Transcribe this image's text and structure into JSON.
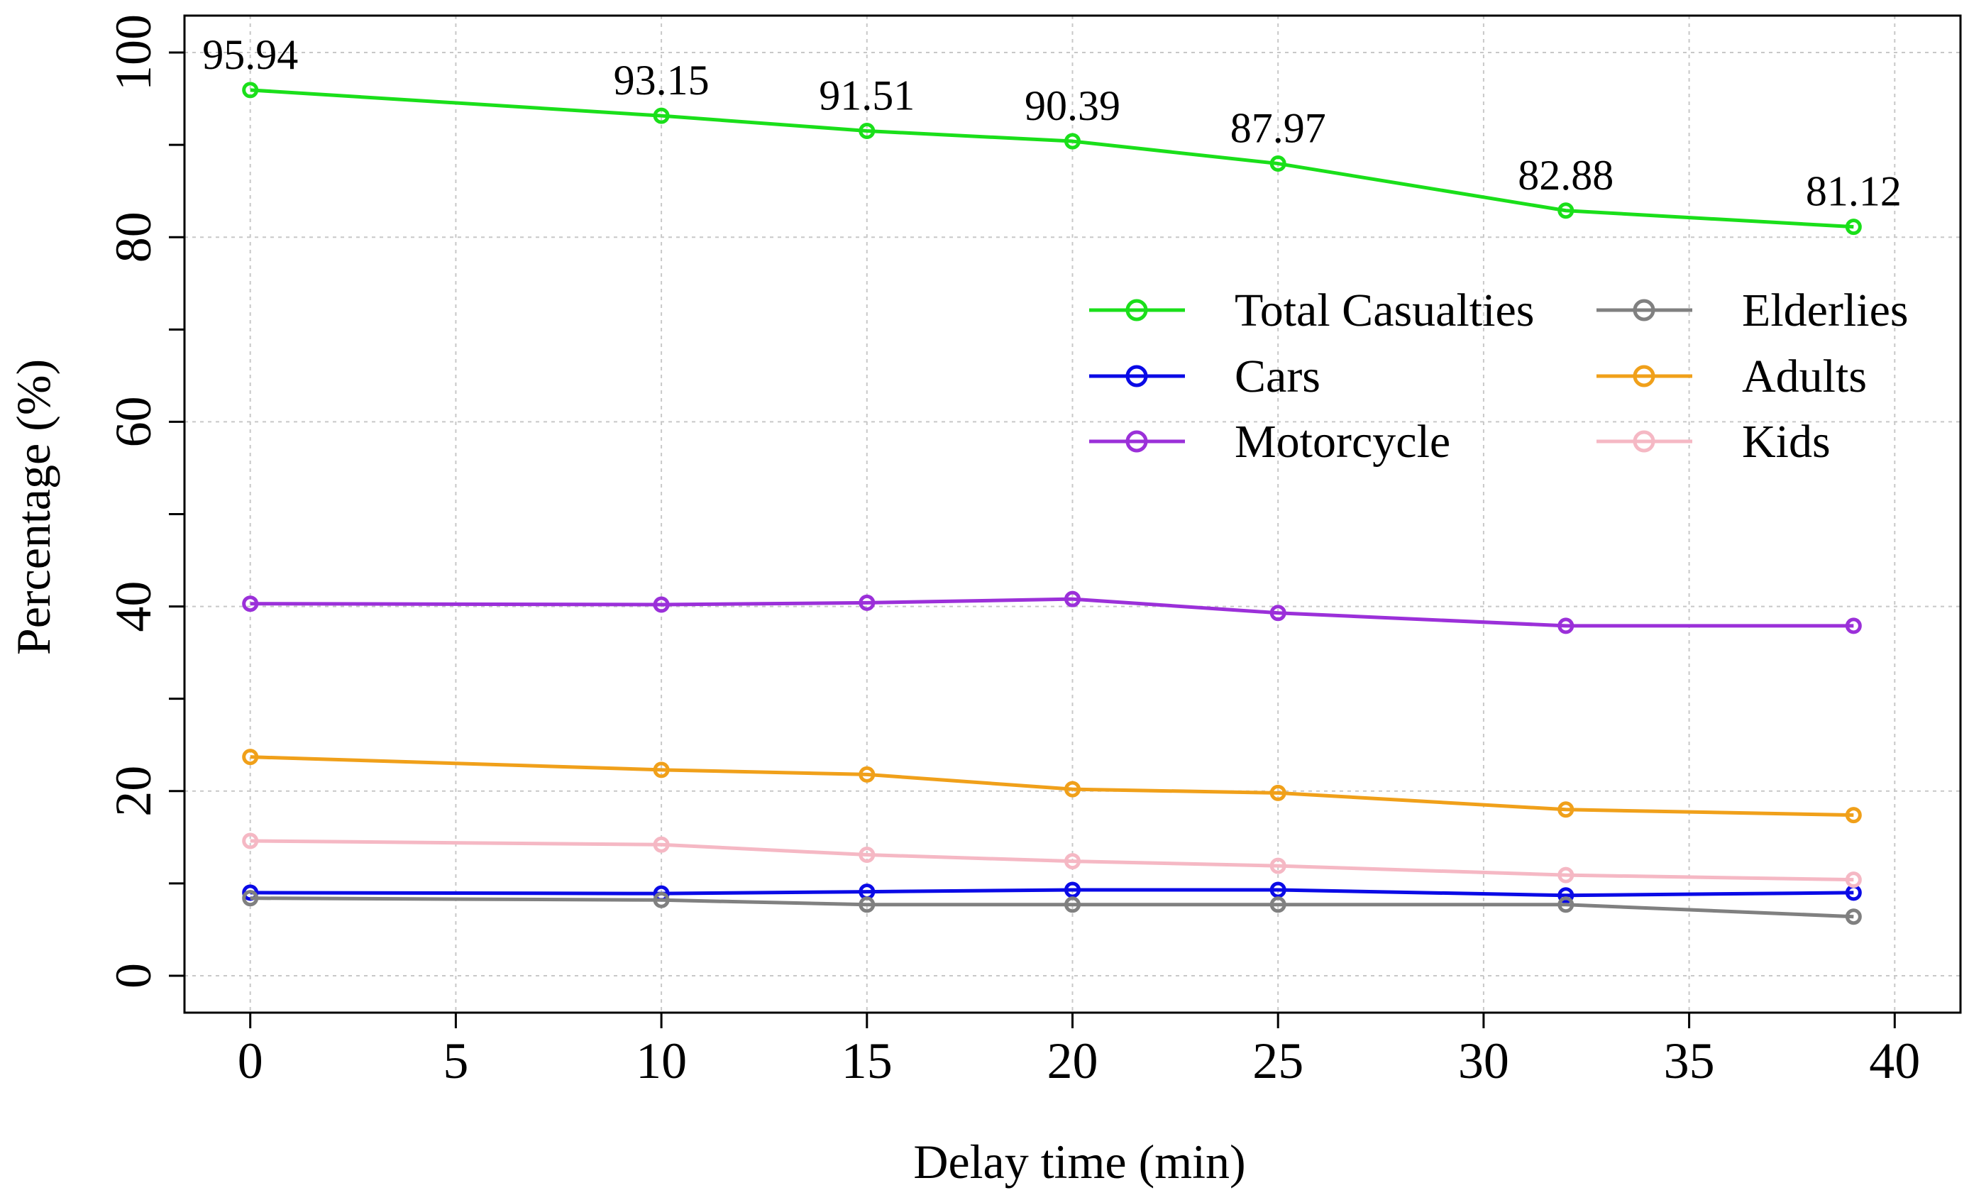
{
  "chart_data": {
    "type": "line",
    "title": "",
    "xlabel": "Delay time (min)",
    "ylabel": "Percentage (%)",
    "xlim": [
      -1.6,
      41.6
    ],
    "ylim": [
      -4,
      104
    ],
    "xticks": [
      0,
      5,
      10,
      15,
      20,
      25,
      30,
      35,
      40
    ],
    "yticks": [
      0,
      20,
      40,
      60,
      80,
      100
    ],
    "grid": true,
    "legend_position": "top-right",
    "x": [
      0,
      10,
      15,
      20,
      25,
      32,
      39
    ],
    "series": [
      {
        "name": "Total Casualties",
        "color": "#1adf1a",
        "values": [
          95.94,
          93.15,
          91.51,
          90.39,
          87.97,
          82.88,
          81.12
        ]
      },
      {
        "name": "Cars",
        "color": "#0a0ae6",
        "values": [
          9.0,
          8.9,
          9.1,
          9.3,
          9.3,
          8.7,
          9.0
        ]
      },
      {
        "name": "Motorcycle",
        "color": "#9b30d9",
        "values": [
          40.3,
          40.2,
          40.4,
          40.8,
          39.3,
          37.9,
          37.9
        ]
      },
      {
        "name": "Elderlies",
        "color": "#808080",
        "values": [
          8.4,
          8.2,
          7.7,
          7.7,
          7.7,
          7.7,
          6.4
        ]
      },
      {
        "name": "Adults",
        "color": "#f0a01a",
        "values": [
          23.7,
          22.3,
          21.8,
          20.2,
          19.8,
          18.0,
          17.4
        ]
      },
      {
        "name": "Kids",
        "color": "#f5b8c4",
        "values": [
          14.6,
          14.2,
          13.1,
          12.4,
          11.9,
          10.9,
          10.4
        ]
      }
    ],
    "annotations": [
      {
        "x": 0,
        "y": 95.94,
        "text": "95.94"
      },
      {
        "x": 10,
        "y": 93.15,
        "text": "93.15"
      },
      {
        "x": 15,
        "y": 91.51,
        "text": "91.51"
      },
      {
        "x": 20,
        "y": 90.39,
        "text": "90.39"
      },
      {
        "x": 25,
        "y": 87.97,
        "text": "87.97"
      },
      {
        "x": 32,
        "y": 82.88,
        "text": "82.88"
      },
      {
        "x": 39,
        "y": 81.12,
        "text": "81.12"
      }
    ]
  }
}
